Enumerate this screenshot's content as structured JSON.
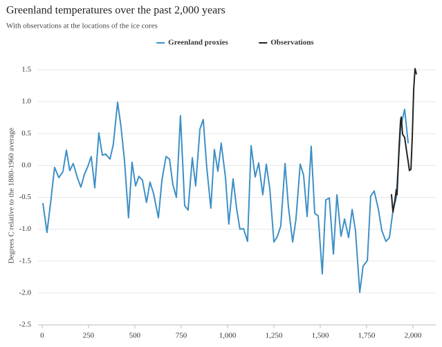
{
  "chart_data": {
    "type": "line",
    "title": "Greenland temperatures over the past 2,000 years",
    "subtitle": "With observations at the locations of the ice cores",
    "y_label": "Degrees C relative to the 1880-1960 average",
    "xlim": [
      -22,
      2123
    ],
    "ylim": [
      -2.5,
      1.5
    ],
    "xticks": [
      0,
      250,
      500,
      750,
      {
        "value": 1000,
        "label": "1,000"
      },
      {
        "value": 1250,
        "label": "1,250"
      },
      {
        "value": 1500,
        "label": "1,500"
      },
      {
        "value": 1750,
        "label": "1,750"
      },
      {
        "value": 2000,
        "label": "2,000"
      }
    ],
    "yticks": [
      -2.5,
      {
        "value": -2,
        "label": "-2.0"
      },
      -1.5,
      {
        "value": -1,
        "label": "-1.0"
      },
      -0.5,
      {
        "value": 0,
        "label": "0.0"
      },
      0.5,
      {
        "value": 1,
        "label": "1.0"
      },
      1.5
    ],
    "grid": true,
    "legend": "top",
    "series": [
      {
        "name": "Greenland proxies",
        "color": "#3d8fc6",
        "x": [
          4,
          26,
          45,
          67,
          90,
          112,
          131,
          149,
          168,
          190,
          209,
          228,
          246,
          265,
          284,
          306,
          325,
          343,
          366,
          384,
          407,
          425,
          444,
          466,
          485,
          504,
          522,
          541,
          563,
          582,
          601,
          627,
          646,
          668,
          687,
          705,
          724,
          746,
          769,
          787,
          810,
          828,
          851,
          869,
          888,
          910,
          929,
          948,
          966,
          989,
          1007,
          1030,
          1049,
          1067,
          1086,
          1108,
          1127,
          1149,
          1168,
          1190,
          1209,
          1228,
          1250,
          1269,
          1287,
          1310,
          1328,
          1351,
          1369,
          1392,
          1410,
          1429,
          1451,
          1470,
          1489,
          1511,
          1530,
          1549,
          1571,
          1590,
          1612,
          1631,
          1653,
          1672,
          1690,
          1713,
          1731,
          1754,
          1772,
          1791,
          1813,
          1832,
          1854,
          1873,
          1892,
          1910,
          1933,
          1955,
          1974
        ],
        "values": [
          -0.59,
          -1.05,
          -0.6,
          -0.03,
          -0.19,
          -0.1,
          0.24,
          -0.08,
          0.03,
          -0.19,
          -0.34,
          -0.14,
          -0.02,
          0.14,
          -0.35,
          0.51,
          0.16,
          0.18,
          0.1,
          0.33,
          0.99,
          0.62,
          0.09,
          -0.82,
          0.05,
          -0.32,
          -0.17,
          -0.23,
          -0.58,
          -0.26,
          -0.44,
          -0.82,
          -0.23,
          0.14,
          0.1,
          -0.3,
          -0.5,
          0.78,
          -0.63,
          -0.7,
          0.12,
          -0.32,
          0.57,
          0.72,
          -0.03,
          -0.67,
          0.25,
          -0.09,
          0.35,
          -0.19,
          -0.92,
          -0.21,
          -0.68,
          -1.0,
          -0.99,
          -1.19,
          0.31,
          -0.18,
          0.04,
          -0.46,
          0.02,
          -0.37,
          -1.2,
          -1.11,
          -0.95,
          0.03,
          -0.64,
          -1.2,
          -0.84,
          0.02,
          -0.15,
          -0.8,
          0.3,
          -0.75,
          -0.79,
          -1.7,
          -0.54,
          -0.51,
          -1.39,
          -0.46,
          -1.11,
          -0.84,
          -1.13,
          -0.69,
          -1.02,
          -1.99,
          -1.58,
          -1.49,
          -0.48,
          -0.4,
          -0.68,
          -1.02,
          -1.19,
          -1.13,
          -0.71,
          -0.5,
          0.59,
          0.88,
          0.35
        ]
      },
      {
        "name": "Observations",
        "color": "#222222",
        "x": [
          1884,
          1892,
          1903,
          1910,
          1914,
          1925,
          1933,
          1937,
          1944,
          1955,
          1966,
          1974,
          1981,
          1989,
          1996,
          2004,
          2011,
          2019
        ],
        "values": [
          -0.45,
          -0.73,
          -0.54,
          -0.38,
          -0.46,
          0.28,
          0.71,
          0.76,
          0.49,
          0.44,
          0.22,
          0.06,
          -0.08,
          -0.06,
          0.44,
          1.2,
          1.52,
          1.43
        ]
      }
    ]
  }
}
